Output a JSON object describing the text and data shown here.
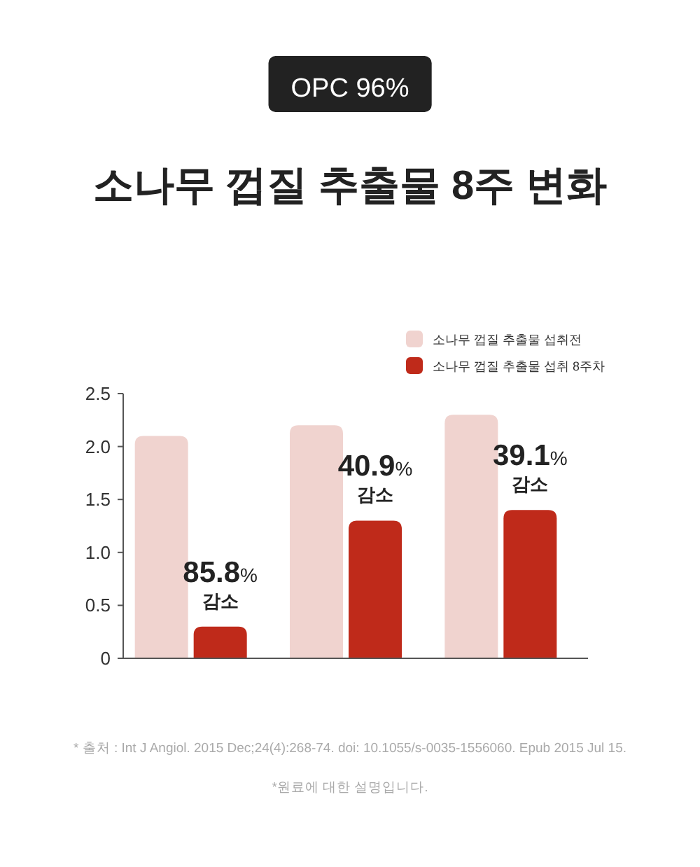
{
  "chart_data": {
    "type": "bar",
    "subtitle": "OPC 96%",
    "title": "소나무 껍질 추출물 8주 변화",
    "categories": [
      null,
      null,
      null
    ],
    "series": [
      {
        "name": "소나무 껍질 추출물 섭취전",
        "color": "#f0d3cf",
        "values": [
          2.1,
          2.2,
          2.3
        ]
      },
      {
        "name": "소나무 껍질 추출물 섭취 8주차",
        "color": "#bf2a1a",
        "values": [
          0.3,
          1.3,
          1.4
        ]
      }
    ],
    "ylim": [
      0,
      2.5
    ],
    "yticks": [
      0,
      0.5,
      {
        "value": 1,
        "label": "1.0"
      },
      1.5,
      {
        "value": 2,
        "label": "2.0"
      },
      2.5
    ],
    "legend": "top right",
    "grid": false,
    "annotations": [
      {
        "text": "85.8%\n감소",
        "y": 0.3
      },
      {
        "text": "40.9%\n감소",
        "y": 1.3
      },
      {
        "text": "39.1%\n감소",
        "y": 1.4
      },
      "* 출처 : Int J Angiol. 2015 Dec;24(4):268-74. doi: 10.1055/s-0035-1556060. Epub 2015 Jul 15.",
      "*원료에 대한 설명입니다."
    ]
  }
}
